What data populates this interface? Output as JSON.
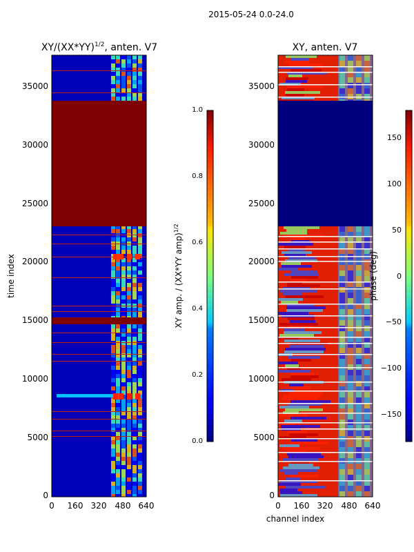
{
  "chart_data": {
    "suptitle": "2015-05-24 0.0-24.0",
    "panels": [
      {
        "type": "heatmap",
        "title_prefix": "XY/(XX*YY)",
        "title_sup": "1/2",
        "title_suffix": ", anten. V7",
        "xlabel": "",
        "ylabel": "time index",
        "xlim": [
          0,
          640
        ],
        "ylim": [
          0,
          37700
        ],
        "xticks": [
          "0",
          "160",
          "320",
          "480",
          "640"
        ],
        "yticks": [
          "0",
          "5000",
          "10000",
          "15000",
          "20000",
          "25000",
          "30000",
          "35000"
        ],
        "colorbar": {
          "label_prefix": "XY amp. / (XX*YY amp)",
          "label_sup": "1/2",
          "range": [
            0.0,
            1.0
          ],
          "ticks": [
            "0.0",
            "0.2",
            "0.4",
            "0.6",
            "0.8",
            "1.0"
          ]
        }
      },
      {
        "type": "heatmap",
        "title": "XY, anten. V7",
        "xlabel": "channel index",
        "ylabel": "",
        "xlim": [
          0,
          640
        ],
        "ylim": [
          0,
          37700
        ],
        "xticks": [
          "0",
          "160",
          "320",
          "480",
          "640"
        ],
        "yticks": [
          "0",
          "5000",
          "10000",
          "15000",
          "20000",
          "25000",
          "30000",
          "35000"
        ],
        "colorbar": {
          "label": "phase (deg)",
          "range": [
            -180,
            180
          ],
          "ticks": [
            "−150",
            "−100",
            "−50",
            "0",
            "50",
            "100",
            "150"
          ]
        }
      }
    ]
  }
}
